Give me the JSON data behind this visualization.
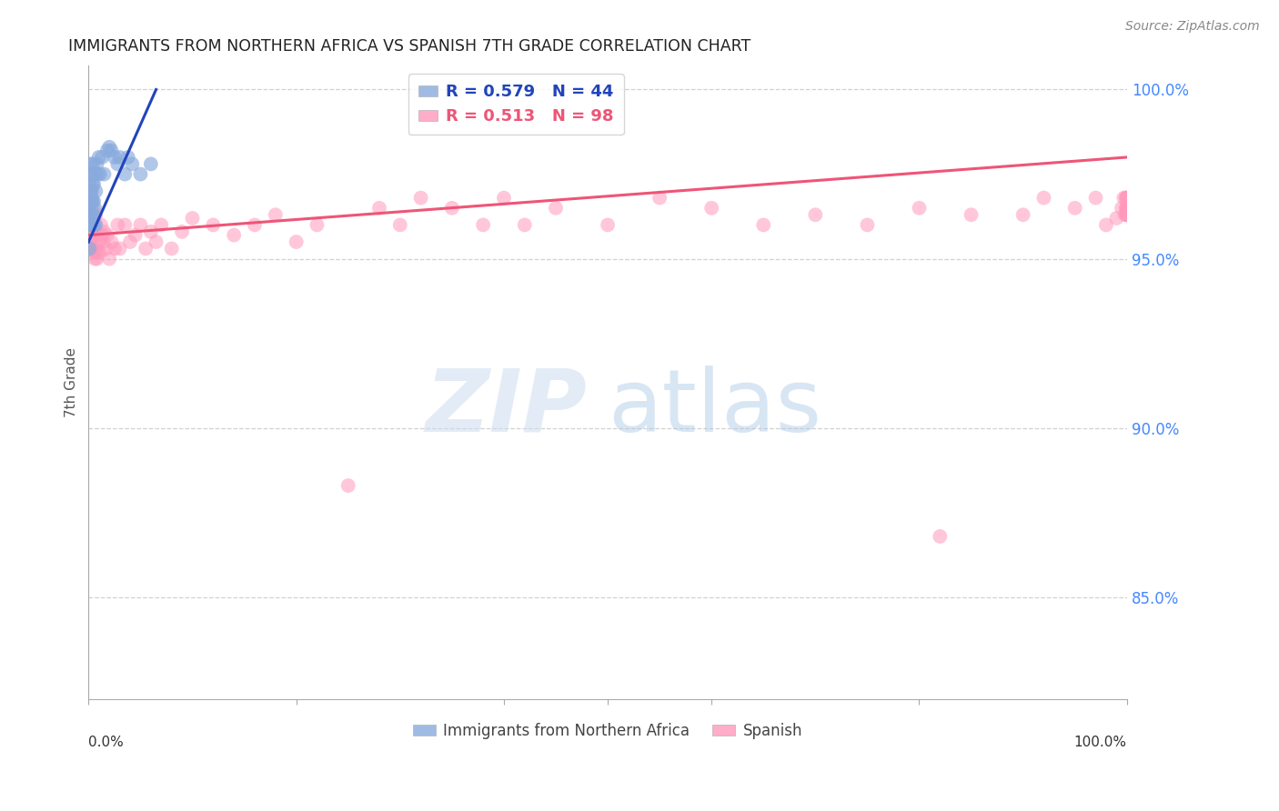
{
  "title": "IMMIGRANTS FROM NORTHERN AFRICA VS SPANISH 7TH GRADE CORRELATION CHART",
  "source": "Source: ZipAtlas.com",
  "ylabel": "7th Grade",
  "ylabel_right_labels": [
    "100.0%",
    "95.0%",
    "90.0%",
    "85.0%"
  ],
  "ylabel_right_values": [
    1.0,
    0.95,
    0.9,
    0.85
  ],
  "xlim": [
    0.0,
    1.0
  ],
  "ylim": [
    0.82,
    1.007
  ],
  "R_blue": 0.579,
  "N_blue": 44,
  "R_pink": 0.513,
  "N_pink": 98,
  "legend_label_blue": "Immigrants from Northern Africa",
  "legend_label_pink": "Spanish",
  "blue_color": "#88aadd",
  "pink_color": "#ff99bb",
  "blue_line_color": "#2244bb",
  "pink_line_color": "#ee5577",
  "blue_x": [
    0.001,
    0.001,
    0.001,
    0.001,
    0.001,
    0.002,
    0.002,
    0.002,
    0.002,
    0.002,
    0.002,
    0.003,
    0.003,
    0.003,
    0.003,
    0.003,
    0.004,
    0.004,
    0.004,
    0.004,
    0.005,
    0.005,
    0.005,
    0.006,
    0.006,
    0.007,
    0.007,
    0.008,
    0.009,
    0.01,
    0.011,
    0.013,
    0.015,
    0.018,
    0.02,
    0.022,
    0.025,
    0.028,
    0.03,
    0.035,
    0.038,
    0.042,
    0.05,
    0.06
  ],
  "blue_y": [
    0.953,
    0.96,
    0.963,
    0.967,
    0.972,
    0.96,
    0.963,
    0.967,
    0.97,
    0.975,
    0.978,
    0.96,
    0.963,
    0.967,
    0.97,
    0.975,
    0.963,
    0.967,
    0.972,
    0.978,
    0.96,
    0.967,
    0.972,
    0.965,
    0.975,
    0.96,
    0.97,
    0.978,
    0.975,
    0.98,
    0.975,
    0.98,
    0.975,
    0.982,
    0.983,
    0.982,
    0.98,
    0.978,
    0.98,
    0.975,
    0.98,
    0.978,
    0.975,
    0.978
  ],
  "pink_x": [
    0.001,
    0.001,
    0.001,
    0.001,
    0.002,
    0.002,
    0.002,
    0.003,
    0.003,
    0.003,
    0.003,
    0.004,
    0.004,
    0.004,
    0.005,
    0.005,
    0.005,
    0.006,
    0.006,
    0.006,
    0.007,
    0.007,
    0.007,
    0.008,
    0.008,
    0.009,
    0.01,
    0.011,
    0.012,
    0.013,
    0.014,
    0.015,
    0.017,
    0.018,
    0.02,
    0.022,
    0.025,
    0.028,
    0.03,
    0.035,
    0.04,
    0.045,
    0.05,
    0.055,
    0.06,
    0.065,
    0.07,
    0.08,
    0.09,
    0.1,
    0.12,
    0.14,
    0.16,
    0.18,
    0.2,
    0.22,
    0.25,
    0.28,
    0.3,
    0.32,
    0.35,
    0.38,
    0.4,
    0.42,
    0.45,
    0.5,
    0.55,
    0.6,
    0.65,
    0.7,
    0.75,
    0.8,
    0.82,
    0.85,
    0.9,
    0.92,
    0.95,
    0.97,
    0.98,
    0.99,
    0.995,
    0.997,
    0.998,
    0.999,
    0.999,
    1.0,
    1.0,
    1.0,
    1.0,
    1.0,
    1.0,
    1.0,
    1.0,
    1.0,
    1.0,
    1.0,
    1.0,
    1.0
  ],
  "pink_y": [
    0.955,
    0.96,
    0.963,
    0.968,
    0.955,
    0.96,
    0.965,
    0.953,
    0.958,
    0.963,
    0.968,
    0.953,
    0.958,
    0.965,
    0.952,
    0.958,
    0.963,
    0.95,
    0.955,
    0.96,
    0.952,
    0.957,
    0.963,
    0.95,
    0.958,
    0.952,
    0.955,
    0.952,
    0.96,
    0.957,
    0.955,
    0.958,
    0.953,
    0.957,
    0.95,
    0.955,
    0.953,
    0.96,
    0.953,
    0.96,
    0.955,
    0.957,
    0.96,
    0.953,
    0.958,
    0.955,
    0.96,
    0.953,
    0.958,
    0.962,
    0.96,
    0.957,
    0.96,
    0.963,
    0.955,
    0.96,
    0.883,
    0.965,
    0.96,
    0.968,
    0.965,
    0.96,
    0.968,
    0.96,
    0.965,
    0.96,
    0.968,
    0.965,
    0.96,
    0.963,
    0.96,
    0.965,
    0.868,
    0.963,
    0.963,
    0.968,
    0.965,
    0.968,
    0.96,
    0.962,
    0.965,
    0.968,
    0.963,
    0.965,
    0.968,
    0.963,
    0.968,
    0.965,
    0.965,
    0.963,
    0.965,
    0.968,
    0.965,
    0.963,
    0.968,
    0.965,
    0.963,
    0.965
  ],
  "blue_line": {
    "x0": 0.0,
    "y0": 0.955,
    "x1": 0.065,
    "y1": 1.0
  },
  "pink_line": {
    "x0": 0.0,
    "y0": 0.957,
    "x1": 1.0,
    "y1": 0.98
  }
}
